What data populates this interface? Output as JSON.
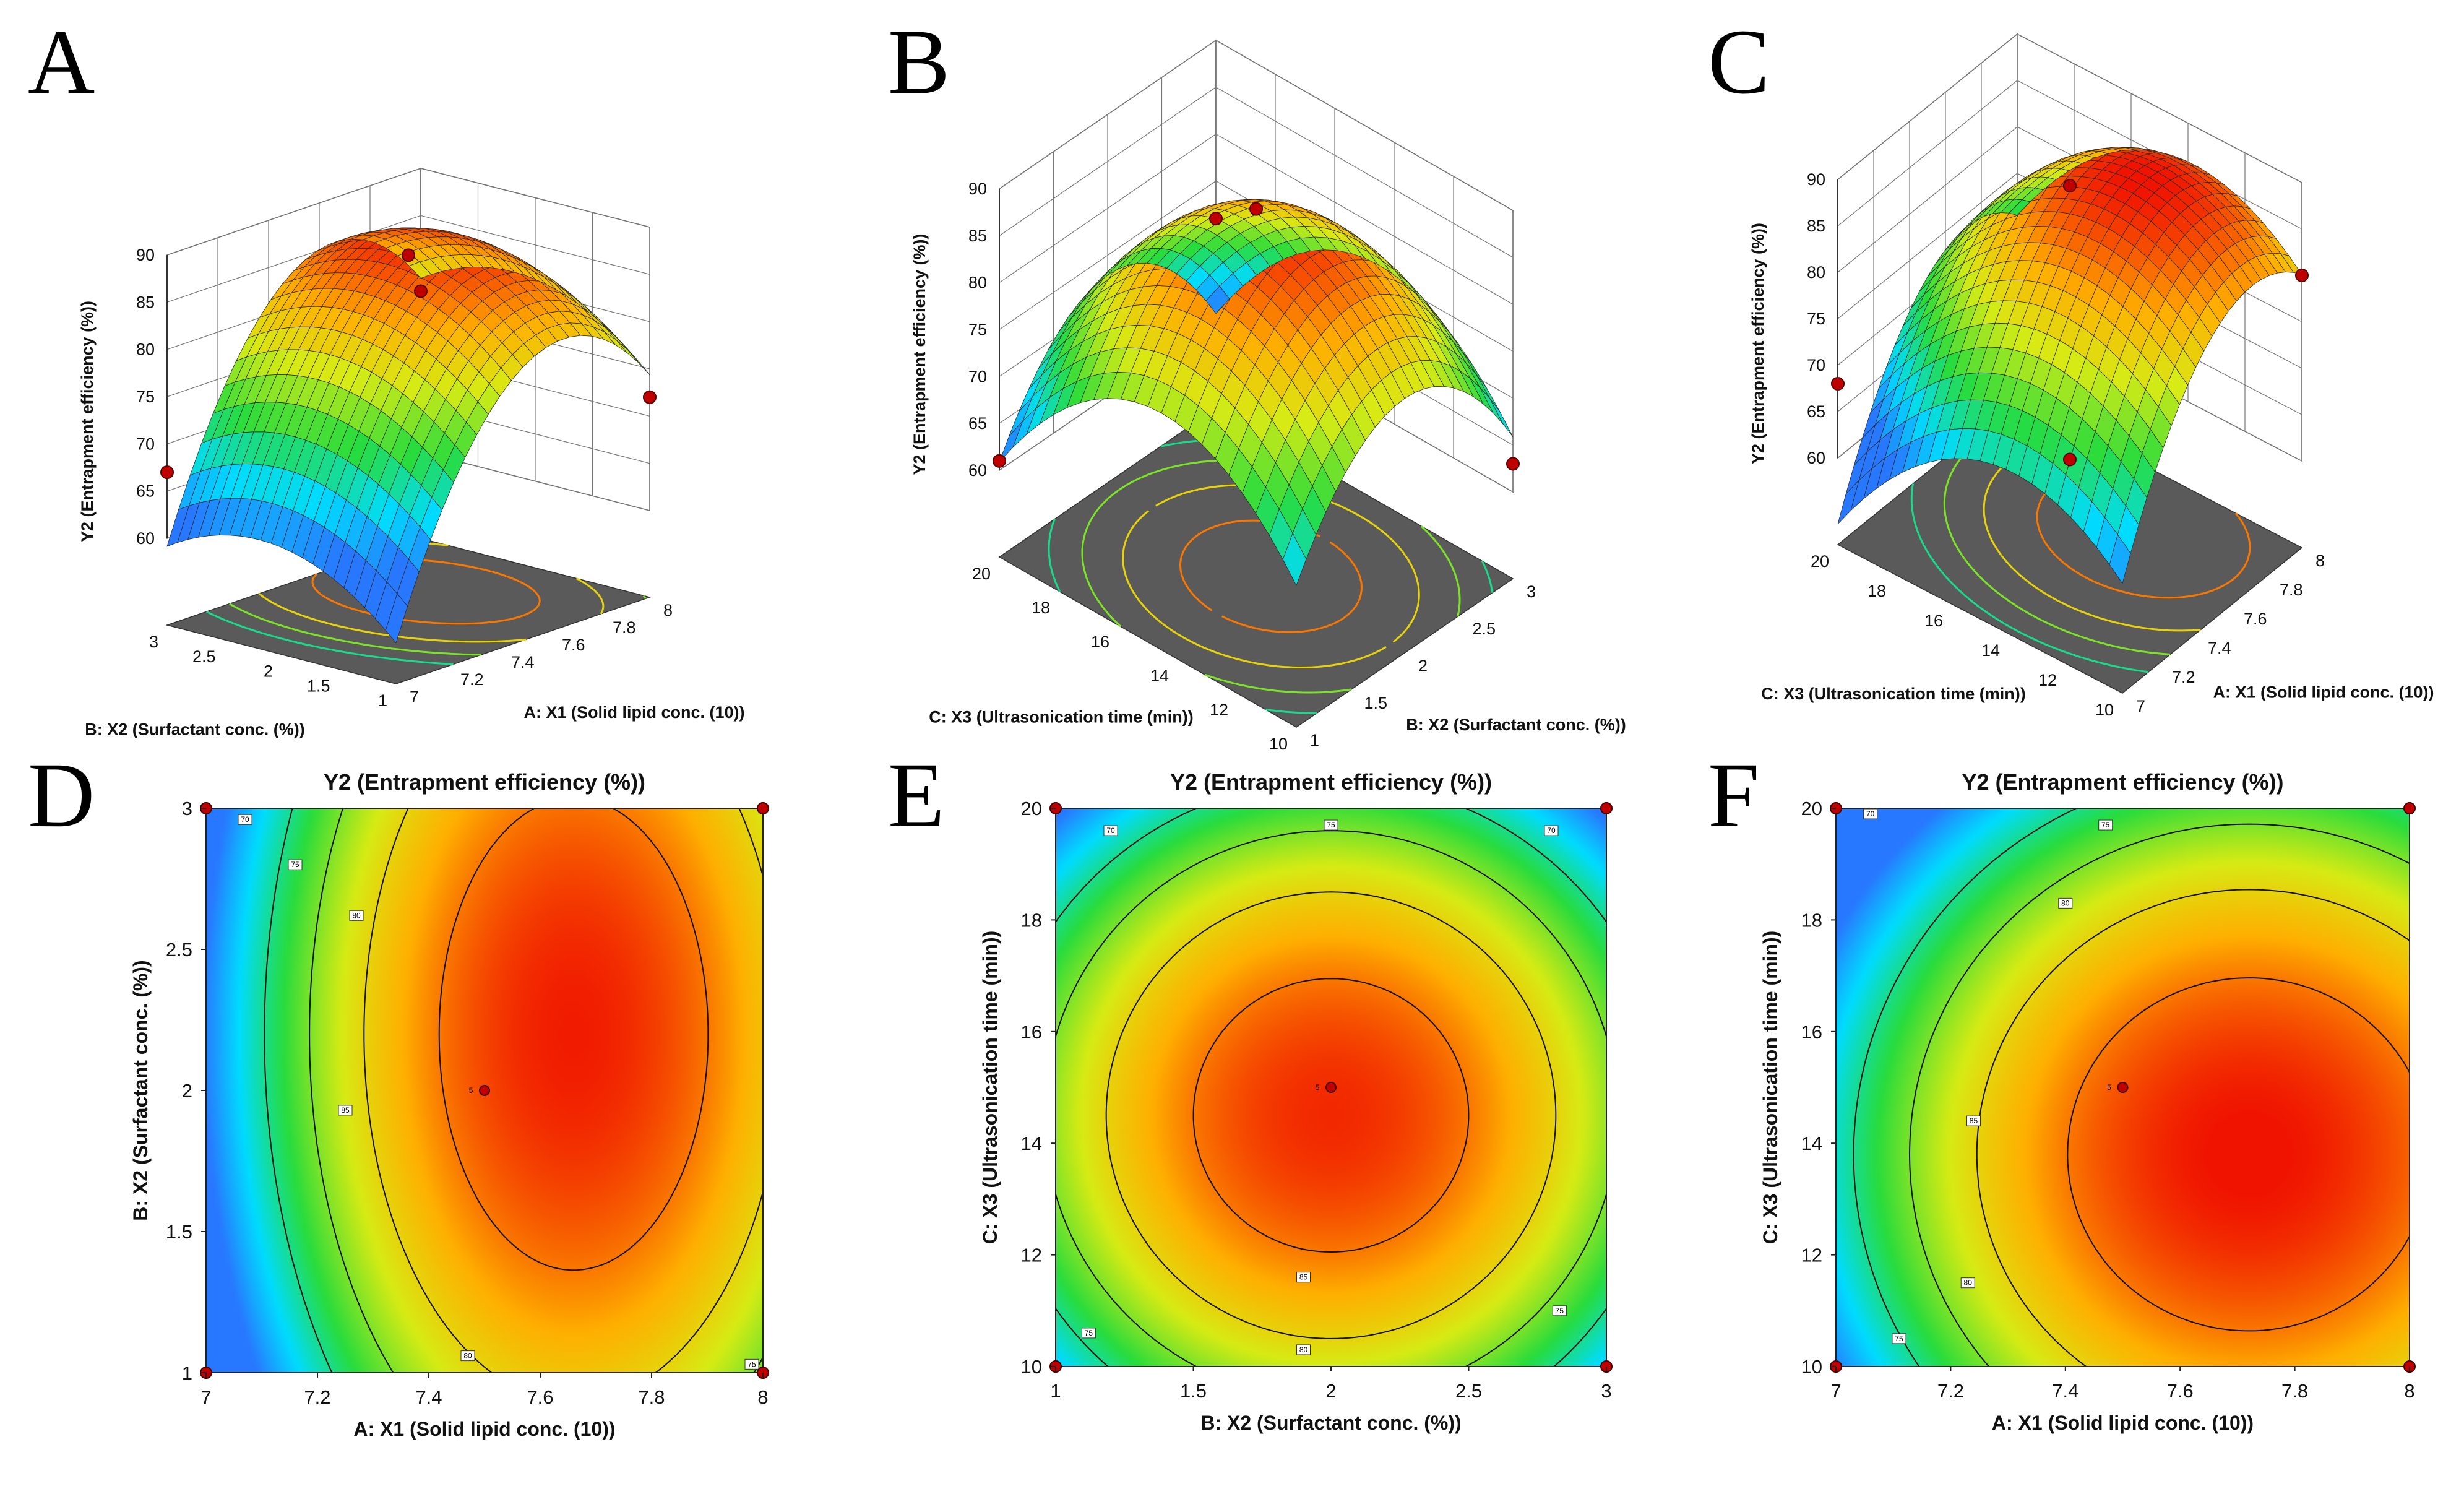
{
  "chart_data": [
    {
      "panel": "A",
      "type": "surface3d",
      "title": "",
      "xlabel": "A: X1 (Solid lipid conc. (10))",
      "ylabel": "B: X2 (Surfactant conc. (%))",
      "zlabel": "Y2 (Entrapment efficiency  (%))",
      "x_ticks": [
        "7",
        "7.2",
        "7.4",
        "7.6",
        "7.8",
        "8"
      ],
      "y_ticks": [
        "1",
        "1.5",
        "2",
        "2.5",
        "3"
      ],
      "z_ticks": [
        "60",
        "65",
        "70",
        "75",
        "80",
        "85",
        "90"
      ],
      "xlim": [
        7,
        8
      ],
      "ylim": [
        1,
        3
      ],
      "zlim": [
        60,
        90
      ],
      "model": {
        "x0": 7.66,
        "y0": 2.2,
        "peak": 88.5,
        "kx": 60,
        "ky": 5.0
      },
      "design_points": [
        {
          "x": 7.5,
          "y": 2,
          "z": 88.5
        },
        {
          "x": 7,
          "y": 3,
          "z": 67
        },
        {
          "x": 8,
          "y": 1,
          "z": 72
        },
        {
          "x": 8,
          "y": 3,
          "z": 77
        }
      ]
    },
    {
      "panel": "B",
      "type": "surface3d",
      "title": "",
      "xlabel": "B: X2 (Surfactant conc. (%))",
      "ylabel": "C: X3 (Ultrasonication time (min))",
      "zlabel": "Y2 (Entrapment efficiency  (%))",
      "x_ticks": [
        "1",
        "1.5",
        "2",
        "2.5",
        "3"
      ],
      "y_ticks": [
        "10",
        "12",
        "14",
        "16",
        "18",
        "20"
      ],
      "z_ticks": [
        "60",
        "65",
        "70",
        "75",
        "80",
        "85",
        "90"
      ],
      "xlim": [
        1,
        3
      ],
      "ylim": [
        10,
        20
      ],
      "zlim": [
        60,
        90
      ],
      "model": {
        "x0": 2.0,
        "y0": 14.5,
        "peak": 88.0,
        "kx": 12.0,
        "ky": 0.5
      },
      "design_points": [
        {
          "x": 2,
          "y": 15,
          "z": 89
        },
        {
          "x": 1,
          "y": 20,
          "z": 61
        },
        {
          "x": 3,
          "y": 10,
          "z": 63
        },
        {
          "x": 3,
          "y": 20,
          "z": 71
        }
      ]
    },
    {
      "panel": "C",
      "type": "surface3d",
      "title": "",
      "xlabel": "A: X1 (Solid lipid conc. (10))",
      "ylabel": "C: X3 (Ultrasonication time (min))",
      "zlabel": "Y2 (Entrapment efficiency  (%))",
      "x_ticks": [
        "7",
        "7.2",
        "7.4",
        "7.6",
        "7.8",
        "8"
      ],
      "y_ticks": [
        "10",
        "12",
        "14",
        "16",
        "18",
        "20"
      ],
      "z_ticks": [
        "60",
        "65",
        "70",
        "75",
        "80",
        "85",
        "90"
      ],
      "xlim": [
        7,
        8
      ],
      "ylim": [
        10,
        20
      ],
      "zlim": [
        60,
        90
      ],
      "model": {
        "x0": 7.72,
        "y0": 13.8,
        "peak": 89.0,
        "kx": 40,
        "ky": 0.4
      },
      "design_points": [
        {
          "x": 7.5,
          "y": 15,
          "z": 89.5
        },
        {
          "x": 7,
          "y": 20,
          "z": 68
        },
        {
          "x": 8,
          "y": 10,
          "z": 80
        },
        {
          "x": 7.5,
          "y": 15,
          "z": 60
        }
      ]
    },
    {
      "panel": "D",
      "type": "contour",
      "title": "Y2 (Entrapment efficiency  (%))",
      "xlabel": "A: X1 (Solid lipid conc. (10))",
      "ylabel": "B: X2 (Surfactant conc. (%))",
      "x_ticks": [
        "7",
        "7.2",
        "7.4",
        "7.6",
        "7.8",
        "8"
      ],
      "y_ticks": [
        "1",
        "1.5",
        "2",
        "2.5",
        "3"
      ],
      "xlim": [
        7,
        8
      ],
      "ylim": [
        1,
        3
      ],
      "model": {
        "x0": 7.66,
        "y0": 2.2,
        "peak": 88.5,
        "kx": 60,
        "ky": 5.0
      },
      "contour_levels": [
        70,
        75,
        80,
        85
      ],
      "contour_labels": [
        {
          "text": "70",
          "x": 7.07,
          "y": 2.96
        },
        {
          "text": "75",
          "x": 7.16,
          "y": 2.8
        },
        {
          "text": "80",
          "x": 7.27,
          "y": 2.62
        },
        {
          "text": "85",
          "x": 7.25,
          "y": 1.93
        },
        {
          "text": "80",
          "x": 7.47,
          "y": 1.06
        },
        {
          "text": "75",
          "x": 7.98,
          "y": 1.03
        }
      ],
      "center_point": {
        "x": 7.5,
        "y": 2,
        "label": "5"
      },
      "design_points": [
        {
          "x": 7,
          "y": 1
        },
        {
          "x": 7,
          "y": 3
        },
        {
          "x": 8,
          "y": 1
        },
        {
          "x": 8,
          "y": 3
        }
      ]
    },
    {
      "panel": "E",
      "type": "contour",
      "title": "Y2 (Entrapment efficiency  (%))",
      "xlabel": "B: X2 (Surfactant conc. (%))",
      "ylabel": "C: X3 (Ultrasonication time (min))",
      "x_ticks": [
        "1",
        "1.5",
        "2",
        "2.5",
        "3"
      ],
      "y_ticks": [
        "10",
        "12",
        "14",
        "16",
        "18",
        "20"
      ],
      "xlim": [
        1,
        3
      ],
      "ylim": [
        10,
        20
      ],
      "model": {
        "x0": 2.0,
        "y0": 14.5,
        "peak": 88.0,
        "kx": 12.0,
        "ky": 0.5
      },
      "contour_levels": [
        70,
        75,
        80,
        85
      ],
      "contour_labels": [
        {
          "text": "70",
          "x": 1.2,
          "y": 19.6
        },
        {
          "text": "75",
          "x": 2.0,
          "y": 19.7
        },
        {
          "text": "70",
          "x": 2.8,
          "y": 19.6
        },
        {
          "text": "85",
          "x": 1.9,
          "y": 11.6
        },
        {
          "text": "80",
          "x": 1.9,
          "y": 10.3
        },
        {
          "text": "75",
          "x": 1.12,
          "y": 10.6
        },
        {
          "text": "75",
          "x": 2.83,
          "y": 11.0
        }
      ],
      "center_point": {
        "x": 2,
        "y": 15,
        "label": "5"
      },
      "design_points": [
        {
          "x": 1,
          "y": 10
        },
        {
          "x": 1,
          "y": 20
        },
        {
          "x": 3,
          "y": 10
        },
        {
          "x": 3,
          "y": 20
        }
      ]
    },
    {
      "panel": "F",
      "type": "contour",
      "title": "Y2 (Entrapment efficiency  (%))",
      "xlabel": "A: X1 (Solid lipid conc. (10))",
      "ylabel": "C: X3 (Ultrasonication time (min))",
      "x_ticks": [
        "7",
        "7.2",
        "7.4",
        "7.6",
        "7.8",
        "8"
      ],
      "y_ticks": [
        "10",
        "12",
        "14",
        "16",
        "18",
        "20"
      ],
      "xlim": [
        7,
        8
      ],
      "ylim": [
        10,
        20
      ],
      "model": {
        "x0": 7.72,
        "y0": 13.8,
        "peak": 89.0,
        "kx": 40,
        "ky": 0.4
      },
      "contour_levels": [
        70,
        75,
        80,
        85
      ],
      "contour_labels": [
        {
          "text": "70",
          "x": 7.06,
          "y": 19.9
        },
        {
          "text": "75",
          "x": 7.47,
          "y": 19.7
        },
        {
          "text": "80",
          "x": 7.4,
          "y": 18.3
        },
        {
          "text": "85",
          "x": 7.24,
          "y": 14.4
        },
        {
          "text": "80",
          "x": 7.23,
          "y": 11.5
        },
        {
          "text": "75",
          "x": 7.11,
          "y": 10.5
        }
      ],
      "center_point": {
        "x": 7.5,
        "y": 15,
        "label": "5"
      },
      "design_points": [
        {
          "x": 7,
          "y": 10
        },
        {
          "x": 7,
          "y": 20
        },
        {
          "x": 8,
          "y": 10
        },
        {
          "x": 8,
          "y": 20
        }
      ]
    }
  ]
}
